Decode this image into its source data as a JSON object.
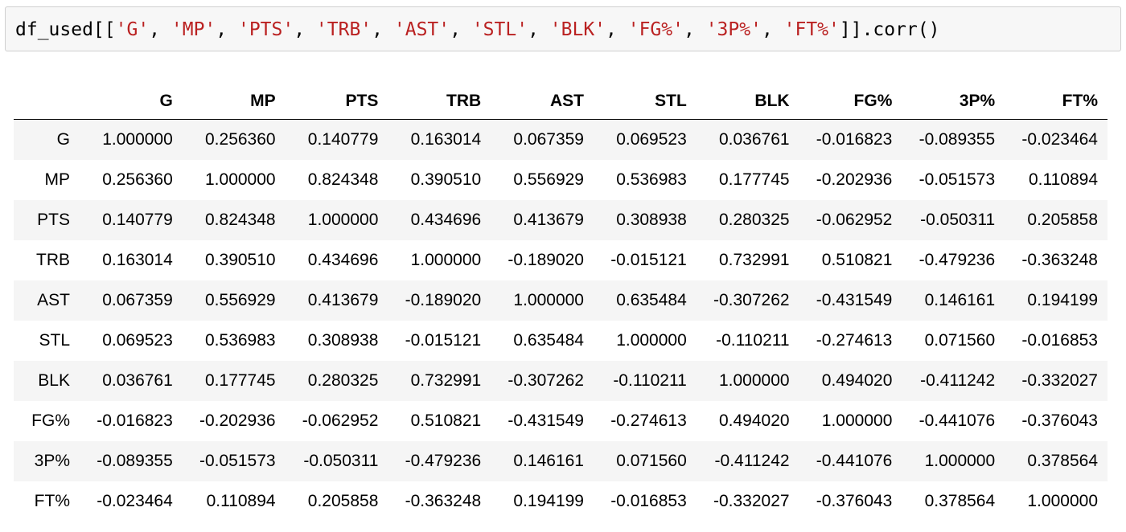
{
  "code_cell": {
    "parts": [
      {
        "type": "txt",
        "text": "df_used[["
      },
      {
        "type": "str",
        "text": "'G'"
      },
      {
        "type": "txt",
        "text": ", "
      },
      {
        "type": "str",
        "text": "'MP'"
      },
      {
        "type": "txt",
        "text": ", "
      },
      {
        "type": "str",
        "text": "'PTS'"
      },
      {
        "type": "txt",
        "text": ", "
      },
      {
        "type": "str",
        "text": "'TRB'"
      },
      {
        "type": "txt",
        "text": ", "
      },
      {
        "type": "str",
        "text": "'AST'"
      },
      {
        "type": "txt",
        "text": ", "
      },
      {
        "type": "str",
        "text": "'STL'"
      },
      {
        "type": "txt",
        "text": ", "
      },
      {
        "type": "str",
        "text": "'BLK'"
      },
      {
        "type": "txt",
        "text": ", "
      },
      {
        "type": "str",
        "text": "'FG%'"
      },
      {
        "type": "txt",
        "text": ", "
      },
      {
        "type": "str",
        "text": "'3P%'"
      },
      {
        "type": "txt",
        "text": ", "
      },
      {
        "type": "str",
        "text": "'FT%'"
      },
      {
        "type": "txt",
        "text": "]].corr()"
      }
    ]
  },
  "table": {
    "corner": "",
    "columns": [
      "G",
      "MP",
      "PTS",
      "TRB",
      "AST",
      "STL",
      "BLK",
      "FG%",
      "3P%",
      "FT%"
    ],
    "rows": [
      {
        "label": "G",
        "values": [
          "1.000000",
          "0.256360",
          "0.140779",
          "0.163014",
          "0.067359",
          "0.069523",
          "0.036761",
          "-0.016823",
          "-0.089355",
          "-0.023464"
        ]
      },
      {
        "label": "MP",
        "values": [
          "0.256360",
          "1.000000",
          "0.824348",
          "0.390510",
          "0.556929",
          "0.536983",
          "0.177745",
          "-0.202936",
          "-0.051573",
          "0.110894"
        ]
      },
      {
        "label": "PTS",
        "values": [
          "0.140779",
          "0.824348",
          "1.000000",
          "0.434696",
          "0.413679",
          "0.308938",
          "0.280325",
          "-0.062952",
          "-0.050311",
          "0.205858"
        ]
      },
      {
        "label": "TRB",
        "values": [
          "0.163014",
          "0.390510",
          "0.434696",
          "1.000000",
          "-0.189020",
          "-0.015121",
          "0.732991",
          "0.510821",
          "-0.479236",
          "-0.363248"
        ]
      },
      {
        "label": "AST",
        "values": [
          "0.067359",
          "0.556929",
          "0.413679",
          "-0.189020",
          "1.000000",
          "0.635484",
          "-0.307262",
          "-0.431549",
          "0.146161",
          "0.194199"
        ]
      },
      {
        "label": "STL",
        "values": [
          "0.069523",
          "0.536983",
          "0.308938",
          "-0.015121",
          "0.635484",
          "1.000000",
          "-0.110211",
          "-0.274613",
          "0.071560",
          "-0.016853"
        ]
      },
      {
        "label": "BLK",
        "values": [
          "0.036761",
          "0.177745",
          "0.280325",
          "0.732991",
          "-0.307262",
          "-0.110211",
          "1.000000",
          "0.494020",
          "-0.411242",
          "-0.332027"
        ]
      },
      {
        "label": "FG%",
        "values": [
          "-0.016823",
          "-0.202936",
          "-0.062952",
          "0.510821",
          "-0.431549",
          "-0.274613",
          "0.494020",
          "1.000000",
          "-0.441076",
          "-0.376043"
        ]
      },
      {
        "label": "3P%",
        "values": [
          "-0.089355",
          "-0.051573",
          "-0.050311",
          "-0.479236",
          "0.146161",
          "0.071560",
          "-0.411242",
          "-0.441076",
          "1.000000",
          "0.378564"
        ]
      },
      {
        "label": "FT%",
        "values": [
          "-0.023464",
          "0.110894",
          "0.205858",
          "-0.363248",
          "0.194199",
          "-0.016853",
          "-0.332027",
          "-0.376043",
          "0.378564",
          "1.000000"
        ]
      }
    ]
  },
  "colors": {
    "string_literal": "#ba2121",
    "code_background": "#f7f7f7",
    "striped_row": "#f5f5f5"
  }
}
